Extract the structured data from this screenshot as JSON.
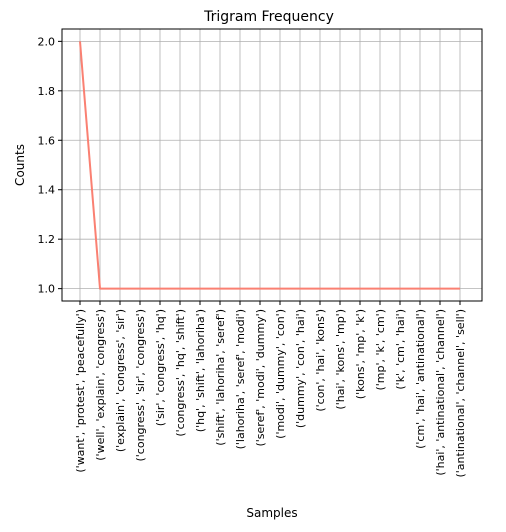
{
  "chart_data": {
    "type": "line",
    "title": "Trigram Frequency",
    "xlabel": "Samples",
    "ylabel": "Counts",
    "categories": [
      "('want', 'protest', 'peacefully')",
      "('well', 'explain', 'congress')",
      "('explain', 'congress', 'sir')",
      "('congress', 'sir', 'congress')",
      "('sir', 'congress', 'hq')",
      "('congress', 'hq', 'shift')",
      "('hq', 'shift', 'lahoriha')",
      "('shift', 'lahoriha', 'seref')",
      "('lahoriha', 'seref', 'modi')",
      "('seref', 'modi', 'dummy')",
      "('modi', 'dummy', 'con')",
      "('dummy', 'con', 'hai')",
      "('con', 'hai', 'kons')",
      "('hai', 'kons', 'mp')",
      "('kons', 'mp', 'k')",
      "('mp', 'k', 'cm')",
      "('k', 'cm', 'hai')",
      "('cm', 'hai', 'antinational')",
      "('hai', 'antinational', 'channel')",
      "('antinational', 'channel', 'sell')"
    ],
    "values": [
      2,
      1,
      1,
      1,
      1,
      1,
      1,
      1,
      1,
      1,
      1,
      1,
      1,
      1,
      1,
      1,
      1,
      1,
      1,
      1
    ],
    "ylim": [
      0.95,
      2.05
    ],
    "yticks": [
      "1.0",
      "1.2",
      "1.4",
      "1.6",
      "1.8",
      "2.0"
    ],
    "grid": true,
    "line_color": "#fa8072"
  }
}
